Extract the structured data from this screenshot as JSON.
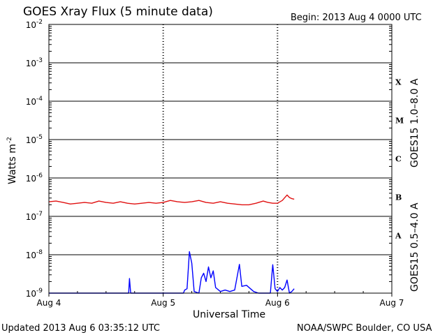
{
  "header": {
    "title": "GOES Xray Flux (5 minute data)",
    "begin": "Begin:  2013 Aug 4 0000 UTC"
  },
  "footer": {
    "updated": "Updated 2013 Aug  6 03:35:12 UTC",
    "source": "NOAA/SWPC Boulder, CO USA"
  },
  "colors": {
    "long_channel": "#e01010",
    "short_channel": "#0000ff",
    "frame": "#000000"
  },
  "chart_data": {
    "type": "line",
    "title": "GOES Xray Flux (5 minute data)",
    "xlabel": "Universal Time",
    "ylabel": "Watts m",
    "ylabel_superscript": "-2",
    "y_scale": "log",
    "ylim": [
      1e-09,
      0.01
    ],
    "y_ticks": [
      {
        "value": 0.01,
        "base": "10",
        "exp": "-2"
      },
      {
        "value": 0.001,
        "base": "10",
        "exp": "-3"
      },
      {
        "value": 0.0001,
        "base": "10",
        "exp": "-4"
      },
      {
        "value": 1e-05,
        "base": "10",
        "exp": "-5"
      },
      {
        "value": 1e-06,
        "base": "10",
        "exp": "-6"
      },
      {
        "value": 1e-07,
        "base": "10",
        "exp": "-7"
      },
      {
        "value": 1e-08,
        "base": "10",
        "exp": "-8"
      },
      {
        "value": 1e-09,
        "base": "10",
        "exp": "-9"
      }
    ],
    "xlim": [
      "2013-08-04T00:00",
      "2013-08-07T00:00"
    ],
    "x_ticks": [
      {
        "value": "2013-08-04T00:00",
        "label": "Aug 4"
      },
      {
        "value": "2013-08-05T00:00",
        "label": "Aug 5"
      },
      {
        "value": "2013-08-06T00:00",
        "label": "Aug 6"
      },
      {
        "value": "2013-08-07T00:00",
        "label": "Aug 7"
      }
    ],
    "grid": "horizontal lines at each decade; dashed vertical lines at day boundaries",
    "flare_classes": [
      {
        "label": "X",
        "lower": 0.0001
      },
      {
        "label": "M",
        "lower": 1e-05
      },
      {
        "label": "C",
        "lower": 1e-06
      },
      {
        "label": "B",
        "lower": 1e-07
      },
      {
        "label": "A",
        "lower": 1e-08
      }
    ],
    "series": [
      {
        "name": "GOES15 1.0–8.0 A",
        "color": "#e01010",
        "points": [
          [
            "2013-08-04T00:00",
            2.4e-07
          ],
          [
            "2013-08-04T01:30",
            2.5e-07
          ],
          [
            "2013-08-04T03:00",
            2.3e-07
          ],
          [
            "2013-08-04T04:30",
            2.1e-07
          ],
          [
            "2013-08-04T06:00",
            2.2e-07
          ],
          [
            "2013-08-04T07:30",
            2.3e-07
          ],
          [
            "2013-08-04T09:00",
            2.2e-07
          ],
          [
            "2013-08-04T10:30",
            2.5e-07
          ],
          [
            "2013-08-04T12:00",
            2.3e-07
          ],
          [
            "2013-08-04T13:30",
            2.2e-07
          ],
          [
            "2013-08-04T15:00",
            2.4e-07
          ],
          [
            "2013-08-04T16:30",
            2.2e-07
          ],
          [
            "2013-08-04T18:00",
            2.1e-07
          ],
          [
            "2013-08-04T19:30",
            2.2e-07
          ],
          [
            "2013-08-04T21:00",
            2.3e-07
          ],
          [
            "2013-08-04T22:30",
            2.2e-07
          ],
          [
            "2013-08-05T00:00",
            2.3e-07
          ],
          [
            "2013-08-05T01:30",
            2.6e-07
          ],
          [
            "2013-08-05T03:00",
            2.4e-07
          ],
          [
            "2013-08-05T04:30",
            2.3e-07
          ],
          [
            "2013-08-05T06:00",
            2.4e-07
          ],
          [
            "2013-08-05T07:30",
            2.6e-07
          ],
          [
            "2013-08-05T09:00",
            2.3e-07
          ],
          [
            "2013-08-05T10:30",
            2.2e-07
          ],
          [
            "2013-08-05T12:00",
            2.4e-07
          ],
          [
            "2013-08-05T13:30",
            2.2e-07
          ],
          [
            "2013-08-05T15:00",
            2.1e-07
          ],
          [
            "2013-08-05T16:30",
            2e-07
          ],
          [
            "2013-08-05T18:00",
            2e-07
          ],
          [
            "2013-08-05T19:30",
            2.2e-07
          ],
          [
            "2013-08-05T21:00",
            2.5e-07
          ],
          [
            "2013-08-05T22:00",
            2.3e-07
          ],
          [
            "2013-08-05T23:00",
            2.2e-07
          ],
          [
            "2013-08-06T00:00",
            2.2e-07
          ],
          [
            "2013-08-06T01:00",
            2.6e-07
          ],
          [
            "2013-08-06T02:00",
            3.6e-07
          ],
          [
            "2013-08-06T02:30",
            3.1e-07
          ],
          [
            "2013-08-06T03:00",
            2.9e-07
          ],
          [
            "2013-08-06T03:30",
            2.8e-07
          ]
        ]
      },
      {
        "name": "GOES15 0.5–4.0 A",
        "color": "#0000ff",
        "points": [
          [
            "2013-08-04T00:00",
            1e-09
          ],
          [
            "2013-08-04T16:45",
            1e-09
          ],
          [
            "2013-08-04T16:55",
            2.4e-09
          ],
          [
            "2013-08-04T17:10",
            1e-09
          ],
          [
            "2013-08-05T04:15",
            1e-09
          ],
          [
            "2013-08-05T04:30",
            1.2e-09
          ],
          [
            "2013-08-05T05:00",
            1.3e-09
          ],
          [
            "2013-08-05T05:30",
            1.2e-08
          ],
          [
            "2013-08-05T06:00",
            6e-09
          ],
          [
            "2013-08-05T06:30",
            1.1e-09
          ],
          [
            "2013-08-05T07:30",
            1e-09
          ],
          [
            "2013-08-05T08:00",
            2.5e-09
          ],
          [
            "2013-08-05T08:30",
            3.3e-09
          ],
          [
            "2013-08-05T09:00",
            2e-09
          ],
          [
            "2013-08-05T09:30",
            4.8e-09
          ],
          [
            "2013-08-05T10:00",
            2.5e-09
          ],
          [
            "2013-08-05T10:30",
            3.8e-09
          ],
          [
            "2013-08-05T11:00",
            1.4e-09
          ],
          [
            "2013-08-05T12:00",
            1.1e-09
          ],
          [
            "2013-08-05T13:00",
            1.2e-09
          ],
          [
            "2013-08-05T14:00",
            1.1e-09
          ],
          [
            "2013-08-05T15:00",
            1.2e-09
          ],
          [
            "2013-08-05T16:00",
            5.6e-09
          ],
          [
            "2013-08-05T16:30",
            1.5e-09
          ],
          [
            "2013-08-05T17:30",
            1.6e-09
          ],
          [
            "2013-08-05T19:00",
            1.1e-09
          ],
          [
            "2013-08-05T20:00",
            1e-09
          ],
          [
            "2013-08-05T22:30",
            1e-09
          ],
          [
            "2013-08-05T23:00",
            5.5e-09
          ],
          [
            "2013-08-05T23:30",
            1.3e-09
          ],
          [
            "2013-08-06T00:00",
            1.1e-09
          ],
          [
            "2013-08-06T00:30",
            1.4e-09
          ],
          [
            "2013-08-06T01:00",
            1.2e-09
          ],
          [
            "2013-08-06T01:30",
            1.4e-09
          ],
          [
            "2013-08-06T02:00",
            2.2e-09
          ],
          [
            "2013-08-06T02:30",
            1e-09
          ],
          [
            "2013-08-06T03:00",
            1.1e-09
          ],
          [
            "2013-08-06T03:30",
            1.3e-09
          ]
        ]
      }
    ]
  }
}
